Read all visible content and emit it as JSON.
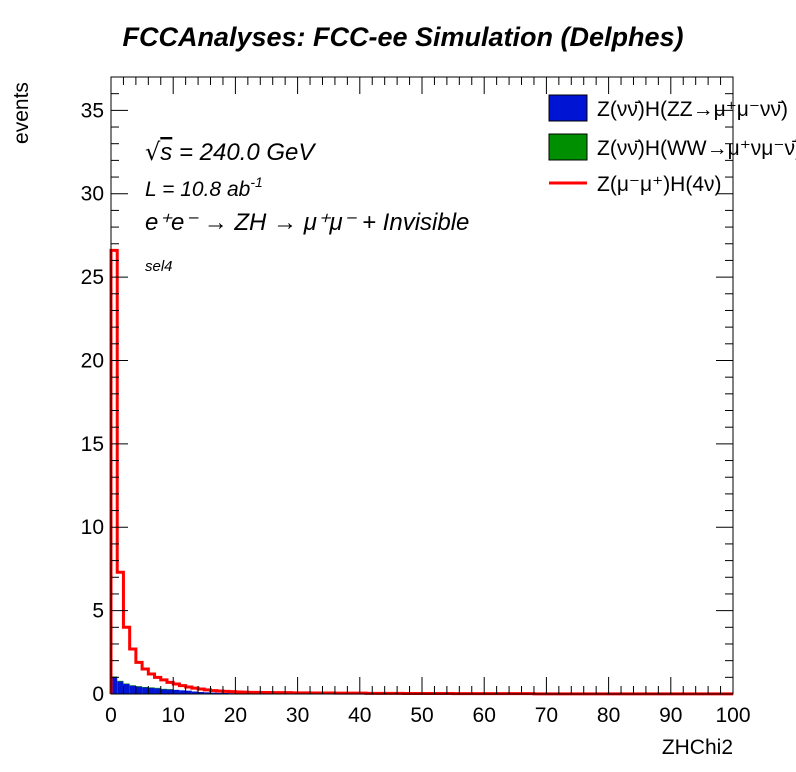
{
  "title": "FCCAnalyses: FCC-ee Simulation (Delphes)",
  "chart_data": {
    "type": "histogram",
    "xlabel": "ZHChi2",
    "ylabel": "events",
    "xlim": [
      0,
      100
    ],
    "ylim": [
      0,
      37
    ],
    "x_ticks": [
      "0",
      "10",
      "20",
      "30",
      "40",
      "50",
      "60",
      "70",
      "80",
      "90",
      "100"
    ],
    "y_ticks": [
      "0",
      "5",
      "10",
      "15",
      "20",
      "25",
      "30",
      "35"
    ],
    "bin_width": 1,
    "legend_position": "top-right",
    "annotations": {
      "energy_prefix": "√",
      "energy_s": "s",
      "energy_value": "= 240.0 GeV",
      "lumi": "L = 10.8 ab",
      "lumi_exp": "-1",
      "process": "e⁺e⁻ → ZH → μ⁺μ⁻ + Invisible",
      "selection": "sel4"
    },
    "series": [
      {
        "name": "Z(νν̄)H(ZZ→μ⁺μ⁻νν̄)",
        "kind": "stacked-fill",
        "color": "#0015d4",
        "values": [
          1.0,
          0.75,
          0.6,
          0.5,
          0.45,
          0.4,
          0.38,
          0.35,
          0.3,
          0.28,
          0.25,
          0.22,
          0.2,
          0.15,
          0.12,
          0.1,
          0.08,
          0.07,
          0.06,
          0.05,
          0.05,
          0.04,
          0.04,
          0.03,
          0.03,
          0.03,
          0.03,
          0.02,
          0.02,
          0.02
        ]
      },
      {
        "name": "Z(νν̄)H(WW→μ⁺νμ⁻ν̄)",
        "kind": "stacked-fill",
        "color": "#008f00",
        "values": [
          0.05,
          0.04,
          0.03,
          0.03,
          0.02,
          0.02,
          0.02,
          0.02,
          0.01,
          0.01
        ]
      },
      {
        "name": "Z(μ⁻μ⁺)H(4ν)",
        "kind": "line",
        "color": "#ff0000",
        "values": [
          26.6,
          7.3,
          4.0,
          2.7,
          1.9,
          1.5,
          1.2,
          1.0,
          0.85,
          0.7,
          0.6,
          0.5,
          0.42,
          0.35,
          0.3,
          0.25,
          0.2,
          0.18,
          0.16,
          0.14,
          0.12,
          0.11,
          0.1,
          0.1,
          0.09,
          0.09,
          0.08,
          0.08,
          0.08,
          0.07,
          0.07,
          0.07,
          0.06,
          0.06,
          0.06,
          0.06,
          0.05,
          0.05,
          0.05,
          0.05,
          0.05,
          0.04,
          0.04,
          0.04,
          0.04,
          0.04,
          0.04,
          0.03,
          0.03,
          0.03,
          0.03,
          0.03,
          0.03,
          0.03,
          0.03,
          0.02,
          0.02,
          0.02,
          0.02,
          0.02,
          0.02,
          0.02,
          0.02,
          0.02,
          0.02,
          0.02,
          0.02,
          0.02,
          0.01,
          0.01,
          0.01,
          0.01,
          0.01,
          0.01,
          0.01,
          0.01,
          0.01,
          0.01,
          0.01,
          0.01,
          0.01,
          0.01,
          0.01,
          0.01,
          0.01,
          0.01,
          0.01,
          0.01,
          0.01,
          0.01,
          0.01,
          0.01,
          0.01,
          0.01,
          0.01,
          0.01,
          0.01,
          0.01,
          0.01,
          0.01
        ]
      }
    ]
  }
}
